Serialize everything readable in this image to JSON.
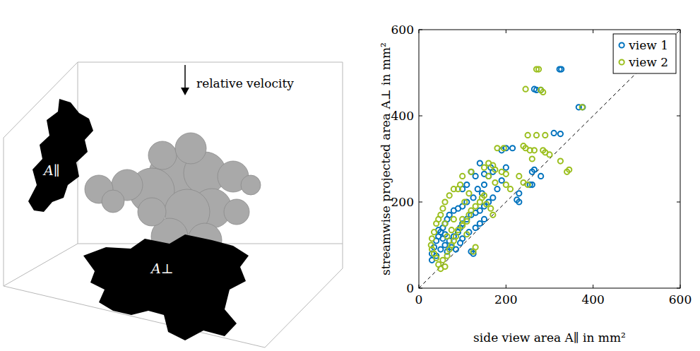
{
  "illustration": {
    "arrow_label": "relative velocity",
    "side_label": "A∥",
    "bottom_label": "A⊥"
  },
  "chart_data": {
    "type": "scatter",
    "x_label": "side view area A∥ in mm²",
    "y_label": "streamwise projected area A⊥ in mm²",
    "xlim": [
      0,
      600
    ],
    "ylim": [
      0,
      600
    ],
    "xticks": [
      0,
      200,
      400,
      600
    ],
    "yticks": [
      0,
      200,
      400,
      600
    ],
    "legend": "upper right",
    "grid": false,
    "series": [
      {
        "name": "view 1",
        "color": "#0072bd",
        "marker": "circle",
        "x": [
          323,
          327,
          265,
          270,
          280,
          367,
          376,
          310,
          325,
          200,
          190,
          215,
          265,
          260,
          280,
          255,
          260,
          200,
          165,
          170,
          150,
          140,
          120,
          130,
          110,
          100,
          230,
          225,
          230,
          125,
          110,
          100,
          90,
          80,
          70,
          65,
          60,
          55,
          50,
          45,
          40,
          35,
          30,
          30,
          40,
          50,
          60,
          70,
          80,
          90,
          95,
          100,
          110,
          120,
          130,
          140,
          150,
          160,
          170,
          180,
          190,
          145,
          135,
          140,
          150,
          130,
          125,
          120,
          95,
          85,
          75,
          65,
          55,
          45,
          60,
          100,
          115,
          150,
          160
        ],
        "values": [
          508,
          508,
          462,
          460,
          460,
          420,
          420,
          360,
          358,
          325,
          320,
          325,
          275,
          270,
          260,
          240,
          240,
          280,
          280,
          270,
          265,
          290,
          270,
          260,
          240,
          230,
          220,
          205,
          200,
          210,
          200,
          190,
          185,
          180,
          170,
          160,
          150,
          140,
          130,
          120,
          110,
          95,
          80,
          65,
          75,
          90,
          100,
          110,
          120,
          130,
          140,
          150,
          160,
          170,
          175,
          180,
          190,
          200,
          210,
          230,
          250,
          220,
          230,
          150,
          160,
          140,
          80,
          85,
          105,
          90,
          95,
          85,
          115,
          135,
          125,
          115,
          130,
          240,
          260
        ]
      },
      {
        "name": "view 2",
        "color": "#9bbf1e",
        "marker": "circle",
        "x": [
          270,
          275,
          245,
          280,
          285,
          375,
          345,
          340,
          325,
          270,
          250,
          290,
          240,
          245,
          255,
          265,
          285,
          290,
          260,
          300,
          180,
          195,
          160,
          170,
          175,
          190,
          200,
          230,
          240,
          250,
          200,
          210,
          150,
          120,
          100,
          95,
          90,
          80,
          70,
          60,
          55,
          50,
          45,
          40,
          35,
          30,
          28,
          30,
          35,
          40,
          45,
          50,
          60,
          55,
          65,
          70,
          75,
          80,
          85,
          90,
          100,
          110,
          115,
          120,
          130,
          140,
          145,
          150,
          155,
          165,
          170,
          125,
          130,
          110,
          100,
          75,
          65,
          60,
          80,
          105,
          115,
          160,
          175
        ],
        "values": [
          508,
          508,
          462,
          460,
          455,
          420,
          275,
          270,
          295,
          355,
          355,
          355,
          330,
          325,
          320,
          320,
          320,
          315,
          300,
          310,
          325,
          325,
          290,
          285,
          275,
          270,
          265,
          260,
          245,
          240,
          240,
          230,
          280,
          270,
          260,
          240,
          230,
          230,
          215,
          200,
          185,
          170,
          160,
          150,
          130,
          115,
          100,
          90,
          80,
          70,
          55,
          45,
          50,
          65,
          75,
          90,
          100,
          110,
          120,
          135,
          145,
          155,
          170,
          180,
          190,
          200,
          210,
          215,
          195,
          185,
          170,
          85,
          95,
          125,
          160,
          135,
          120,
          150,
          160,
          200,
          220,
          260,
          245
        ]
      }
    ]
  }
}
